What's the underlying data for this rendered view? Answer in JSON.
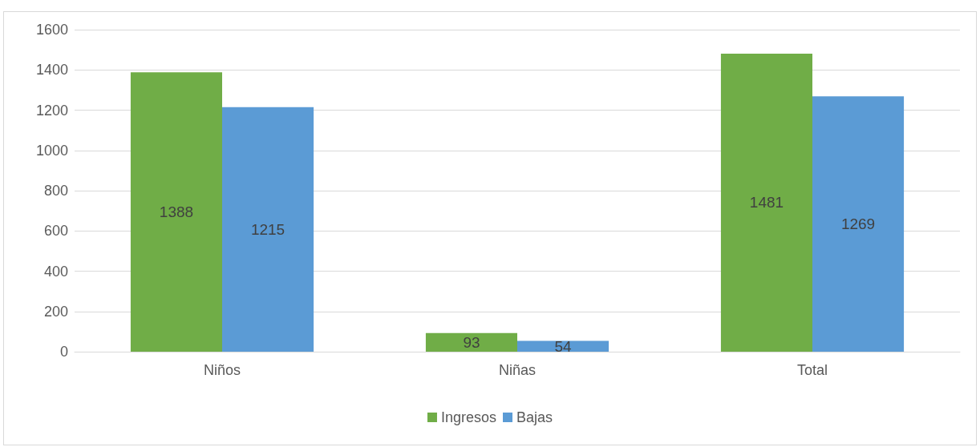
{
  "chart_data": {
    "type": "bar",
    "categories": [
      "Niños",
      "Niñas",
      "Total"
    ],
    "series": [
      {
        "name": "Ingresos",
        "color": "#70ad47",
        "values": [
          1388,
          93,
          1481
        ]
      },
      {
        "name": "Bajas",
        "color": "#5b9bd5",
        "values": [
          1215,
          54,
          1269
        ]
      }
    ],
    "ylim": [
      0,
      1600
    ],
    "yticks": [
      0,
      200,
      400,
      600,
      800,
      1000,
      1200,
      1400,
      1600
    ],
    "grid": "y",
    "legend": "bottom",
    "data_labels": true
  }
}
